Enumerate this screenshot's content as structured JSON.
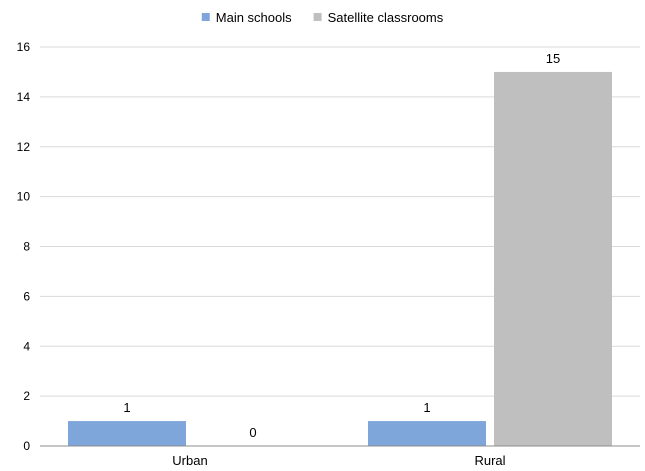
{
  "chart_data": {
    "type": "bar",
    "categories": [
      "Urban",
      "Rural"
    ],
    "series": [
      {
        "name": "Main schools",
        "values": [
          1,
          1
        ],
        "color": "#7fa6db"
      },
      {
        "name": "Satellite classrooms",
        "values": [
          0,
          15
        ],
        "color": "#bfbfbf"
      }
    ],
    "ylim": [
      0,
      16
    ],
    "yticks": [
      0,
      2,
      4,
      6,
      8,
      10,
      12,
      14,
      16
    ],
    "grid": true,
    "legend_position": "top-center",
    "data_labels": true
  }
}
